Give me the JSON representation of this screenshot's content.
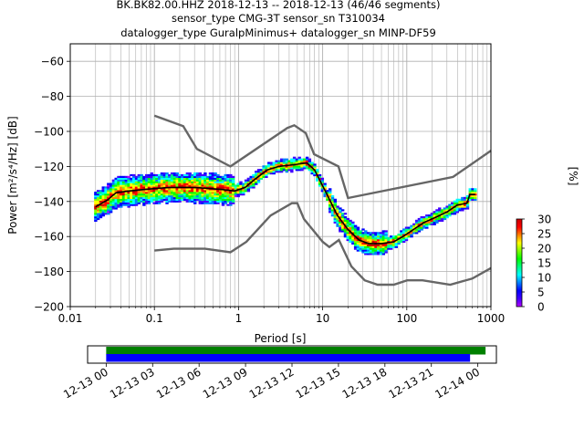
{
  "chart_data": [
    {
      "type": "heatmap",
      "title_lines": [
        "BK.BK82.00.HHZ   2018-12-13 -- 2018-12-13  (46/46 segments)",
        "sensor_type CMG-3T sensor_sn T310034",
        "datalogger_type GuralpMinimus+ datalogger_sn MINP-DF59"
      ],
      "xlabel": "Period [s]",
      "ylabel": "Power [m²/s⁴/Hz] [dB]",
      "x_scale": "log",
      "xlim": [
        0.01,
        1000
      ],
      "ylim": [
        -200,
        -50
      ],
      "x_ticks": [
        {
          "value": 0.01,
          "label": "0.01"
        },
        {
          "value": 0.1,
          "label": "0.1"
        },
        {
          "value": 1,
          "label": "1"
        },
        {
          "value": 10,
          "label": "10"
        },
        {
          "value": 100,
          "label": "100"
        },
        {
          "value": 1000,
          "label": "1000"
        }
      ],
      "y_ticks": [
        -200,
        -180,
        -160,
        -140,
        -120,
        -100,
        -80,
        -60
      ],
      "grid": true,
      "noise_models": {
        "high": [
          [
            0.1,
            -91
          ],
          [
            0.22,
            -97
          ],
          [
            0.32,
            -110
          ],
          [
            0.8,
            -120
          ],
          [
            3.8,
            -98
          ],
          [
            4.6,
            -96.5
          ],
          [
            6.3,
            -101
          ],
          [
            7.9,
            -113
          ],
          [
            15.4,
            -120
          ],
          [
            20,
            -138
          ],
          [
            354.8,
            -126
          ],
          [
            1000,
            -111
          ]
        ],
        "low": [
          [
            0.1,
            -168
          ],
          [
            0.17,
            -167
          ],
          [
            0.4,
            -167
          ],
          [
            0.8,
            -169
          ],
          [
            1.24,
            -163
          ],
          [
            2.4,
            -148
          ],
          [
            4.3,
            -141
          ],
          [
            5,
            -141
          ],
          [
            6,
            -150
          ],
          [
            10,
            -163
          ],
          [
            12,
            -166
          ],
          [
            15.6,
            -162
          ],
          [
            21.9,
            -177
          ],
          [
            31.6,
            -185
          ],
          [
            45,
            -187.5
          ],
          [
            70,
            -187.5
          ],
          [
            101,
            -185
          ],
          [
            154,
            -185
          ],
          [
            328,
            -187.5
          ],
          [
            600,
            -184
          ],
          [
            1000,
            -178
          ]
        ]
      },
      "mean_curve": [
        [
          0.02,
          -143
        ],
        [
          0.028,
          -139
        ],
        [
          0.035,
          -135
        ],
        [
          0.05,
          -134
        ],
        [
          0.08,
          -133
        ],
        [
          0.15,
          -132
        ],
        [
          0.3,
          -132
        ],
        [
          0.6,
          -133
        ],
        [
          0.9,
          -134
        ],
        [
          1.2,
          -132
        ],
        [
          1.6,
          -127
        ],
        [
          2.2,
          -122
        ],
        [
          3,
          -120
        ],
        [
          4.5,
          -119
        ],
        [
          6.5,
          -118
        ],
        [
          8,
          -122
        ],
        [
          11,
          -135
        ],
        [
          15,
          -148
        ],
        [
          20,
          -156
        ],
        [
          27,
          -162
        ],
        [
          35,
          -164
        ],
        [
          50,
          -164
        ],
        [
          70,
          -163
        ],
        [
          90,
          -160
        ],
        [
          120,
          -156
        ],
        [
          160,
          -152
        ],
        [
          220,
          -149
        ],
        [
          300,
          -146
        ],
        [
          400,
          -142
        ],
        [
          520,
          -141
        ],
        [
          560,
          -136
        ],
        [
          650,
          -136
        ]
      ],
      "colorbar": {
        "label": "[%]",
        "ticks": [
          0,
          5,
          10,
          15,
          20,
          25,
          30
        ],
        "range": [
          0,
          30
        ],
        "colors": [
          "#ffffff",
          "#b400ff",
          "#4000ff",
          "#0000ff",
          "#0080ff",
          "#00ffff",
          "#00ff80",
          "#00ff00",
          "#80ff00",
          "#ffff00",
          "#ff8000",
          "#ff0000",
          "#c80000"
        ]
      }
    },
    {
      "type": "timeline",
      "tick_labels": [
        "12-13 00",
        "12-13 03",
        "12-13 06",
        "12-13 09",
        "12-13 12",
        "12-13 15",
        "12-13 18",
        "12-13 21",
        "12-14 00"
      ],
      "tick_hours": [
        0,
        3,
        6,
        9,
        12,
        15,
        18,
        21,
        24
      ],
      "xlim_hours": [
        -1.2,
        25.2
      ],
      "bars": [
        {
          "color": "#008000",
          "start_hour": 0,
          "end_hour": 24.5
        },
        {
          "color": "#0000ff",
          "start_hour": 0,
          "end_hour": 23.5
        }
      ]
    }
  ]
}
